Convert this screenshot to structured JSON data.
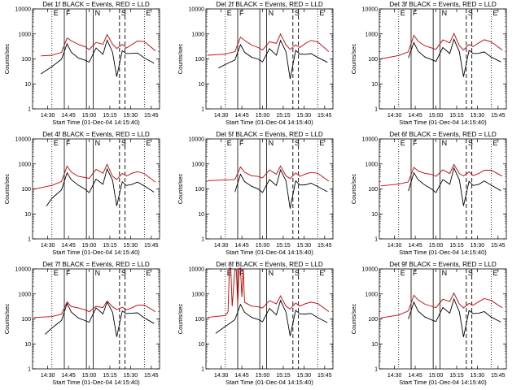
{
  "figure": {
    "ylabel": "Counts/sec",
    "xlabel": "Start Time (01-Dec-04 14:15:40)",
    "x_ticks": [
      "14:30",
      "14:45",
      "15:00",
      "15:15",
      "15:30",
      "15:45"
    ],
    "y_ticks": [
      "1",
      "10",
      "100",
      "1000",
      "10000"
    ],
    "segment_markers": [
      "E",
      "F",
      "N",
      "S",
      "E"
    ],
    "colors": {
      "events": "#000000",
      "lld": "#cc0000",
      "axis": "#000000"
    }
  },
  "chart_data": [
    {
      "type": "line",
      "title": "Det 1f BLACK = Events, RED = LLD",
      "xlabel": "Start Time (01-Dec-04 14:15:40)",
      "ylabel": "Counts/sec",
      "x_range_minutes": [
        14.3,
        14.9
      ],
      "ylim": [
        1,
        10000
      ],
      "log_y": true,
      "series": [
        {
          "name": "Events",
          "color": "#000000",
          "x": [
            "14:25",
            "14:33",
            "14:40",
            "14:44",
            "14:47",
            "14:52",
            "14:57",
            "15:00",
            "15:05",
            "15:10",
            "15:13",
            "15:17",
            "15:20",
            "15:24",
            "15:27",
            "15:31",
            "15:35",
            "15:40",
            "15:47"
          ],
          "values": [
            25,
            45,
            90,
            400,
            200,
            120,
            90,
            70,
            250,
            150,
            600,
            200,
            20,
            200,
            150,
            160,
            180,
            120,
            70
          ]
        },
        {
          "name": "LLD",
          "color": "#cc0000",
          "x": [
            "14:25",
            "14:33",
            "14:40",
            "14:44",
            "14:47",
            "14:52",
            "14:57",
            "15:00",
            "15:05",
            "15:10",
            "15:13",
            "15:17",
            "15:20",
            "15:24",
            "15:27",
            "15:31",
            "15:35",
            "15:40",
            "15:48"
          ],
          "values": [
            130,
            150,
            200,
            700,
            500,
            350,
            300,
            250,
            500,
            400,
            900,
            350,
            250,
            400,
            300,
            400,
            500,
            450,
            200
          ]
        }
      ]
    },
    {
      "type": "line",
      "title": "Det 2f BLACK = Events, RED = LLD",
      "xlabel": "Start Time (01-Dec-04 14:15:40)",
      "ylabel": "Counts/sec",
      "ylim": [
        1,
        10000
      ],
      "log_y": true,
      "series": [
        {
          "name": "Events",
          "color": "#000000",
          "x": [
            "14:28",
            "14:33",
            "14:40",
            "14:44",
            "14:47",
            "14:52",
            "14:57",
            "15:00",
            "15:05",
            "15:10",
            "15:13",
            "15:17",
            "15:20",
            "15:24",
            "15:27",
            "15:31",
            "15:35",
            "15:40",
            "15:47"
          ],
          "values": [
            40,
            55,
            90,
            400,
            200,
            120,
            90,
            70,
            250,
            150,
            600,
            200,
            15,
            200,
            150,
            160,
            180,
            120,
            70
          ]
        },
        {
          "name": "LLD",
          "color": "#cc0000",
          "x": [
            "14:20",
            "14:33",
            "14:40",
            "14:44",
            "14:47",
            "14:52",
            "14:57",
            "15:00",
            "15:05",
            "15:10",
            "15:13",
            "15:17",
            "15:20",
            "15:24",
            "15:27",
            "15:31",
            "15:35",
            "15:40",
            "15:48"
          ],
          "values": [
            150,
            170,
            200,
            700,
            500,
            350,
            300,
            250,
            500,
            400,
            900,
            350,
            250,
            400,
            300,
            400,
            500,
            450,
            200
          ]
        }
      ]
    },
    {
      "type": "line",
      "title": "Det 3f BLACK = Events, RED = LLD",
      "xlabel": "Start Time (01-Dec-04 14:15:40)",
      "ylabel": "Counts/sec",
      "ylim": [
        1,
        10000
      ],
      "log_y": true,
      "series": [
        {
          "name": "Events",
          "color": "#000000",
          "x": [
            "14:40",
            "14:44",
            "14:47",
            "14:52",
            "14:57",
            "15:00",
            "15:05",
            "15:10",
            "15:13",
            "15:17",
            "15:20",
            "15:24",
            "15:27",
            "15:31",
            "15:35",
            "15:40",
            "15:47"
          ],
          "values": [
            100,
            450,
            220,
            130,
            95,
            75,
            260,
            160,
            650,
            210,
            20,
            210,
            150,
            160,
            200,
            130,
            80
          ]
        },
        {
          "name": "LLD",
          "color": "#cc0000",
          "x": [
            "14:20",
            "14:33",
            "14:40",
            "14:44",
            "14:47",
            "14:52",
            "14:57",
            "15:00",
            "15:05",
            "15:10",
            "15:13",
            "15:17",
            "15:20",
            "15:24",
            "15:27",
            "15:31",
            "15:35",
            "15:40",
            "15:48"
          ],
          "values": [
            110,
            140,
            180,
            800,
            500,
            350,
            300,
            250,
            550,
            400,
            1000,
            350,
            250,
            400,
            300,
            400,
            550,
            500,
            250
          ]
        }
      ]
    },
    {
      "type": "line",
      "title": "Det 4f BLACK = Events, RED = LLD",
      "xlabel": "Start Time (01-Dec-04 14:15:40)",
      "ylabel": "Counts/sec",
      "ylim": [
        1,
        10000
      ],
      "log_y": true,
      "series": [
        {
          "name": "Events",
          "color": "#000000",
          "x": [
            "14:29",
            "14:33",
            "14:40",
            "14:44",
            "14:47",
            "14:52",
            "14:57",
            "15:00",
            "15:05",
            "15:10",
            "15:13",
            "15:17",
            "15:20",
            "15:24",
            "15:27",
            "15:31",
            "15:35",
            "15:40",
            "15:47"
          ],
          "values": [
            20,
            45,
            100,
            450,
            220,
            130,
            95,
            75,
            270,
            160,
            600,
            200,
            20,
            200,
            150,
            160,
            180,
            120,
            70
          ]
        },
        {
          "name": "LLD",
          "color": "#cc0000",
          "x": [
            "14:20",
            "14:33",
            "14:40",
            "14:44",
            "14:47",
            "14:52",
            "14:57",
            "15:00",
            "15:05",
            "15:10",
            "15:13",
            "15:17",
            "15:20",
            "15:24",
            "15:27",
            "15:31",
            "15:35",
            "15:40",
            "15:48"
          ],
          "values": [
            100,
            130,
            180,
            800,
            500,
            350,
            300,
            250,
            550,
            400,
            1000,
            350,
            250,
            400,
            300,
            400,
            500,
            450,
            200
          ]
        }
      ]
    },
    {
      "type": "line",
      "title": "Det 5f BLACK = Events, RED = LLD",
      "xlabel": "Start Time (01-Dec-04 14:15:40)",
      "ylabel": "Counts/sec",
      "ylim": [
        1,
        10000
      ],
      "log_y": true,
      "series": [
        {
          "name": "Events",
          "color": "#000000",
          "x": [
            "14:40",
            "14:44",
            "14:47",
            "14:52",
            "14:57",
            "15:00",
            "15:05",
            "15:10",
            "15:13",
            "15:17",
            "15:20",
            "15:24",
            "15:27",
            "15:31",
            "15:35",
            "15:40",
            "15:47"
          ],
          "values": [
            80,
            420,
            200,
            120,
            90,
            70,
            250,
            150,
            600,
            200,
            15,
            200,
            150,
            160,
            180,
            120,
            70
          ]
        },
        {
          "name": "LLD",
          "color": "#cc0000",
          "x": [
            "14:20",
            "14:33",
            "14:40",
            "14:44",
            "14:47",
            "14:52",
            "14:57",
            "15:00",
            "15:05",
            "15:10",
            "15:13",
            "15:17",
            "15:20",
            "15:24",
            "15:27",
            "15:31",
            "15:35",
            "15:40",
            "15:48"
          ],
          "values": [
            200,
            210,
            230,
            800,
            500,
            350,
            300,
            250,
            550,
            400,
            900,
            350,
            250,
            400,
            300,
            400,
            500,
            450,
            200
          ]
        }
      ]
    },
    {
      "type": "line",
      "title": "Det 6f BLACK = Events, RED = LLD",
      "xlabel": "Start Time (01-Dec-04 14:15:40)",
      "ylabel": "Counts/sec",
      "ylim": [
        1,
        10000
      ],
      "log_y": true,
      "series": [
        {
          "name": "Events",
          "color": "#000000",
          "x": [
            "14:40",
            "14:44",
            "14:47",
            "14:52",
            "14:57",
            "15:00",
            "15:05",
            "15:10",
            "15:13",
            "15:17",
            "15:20",
            "15:24",
            "15:27",
            "15:31",
            "15:35",
            "15:40",
            "15:47"
          ],
          "values": [
            90,
            450,
            220,
            130,
            95,
            75,
            260,
            160,
            650,
            210,
            20,
            210,
            150,
            160,
            200,
            130,
            80
          ]
        },
        {
          "name": "LLD",
          "color": "#cc0000",
          "x": [
            "14:20",
            "14:33",
            "14:40",
            "14:44",
            "14:47",
            "14:52",
            "14:57",
            "15:00",
            "15:05",
            "15:10",
            "15:13",
            "15:17",
            "15:20",
            "15:24",
            "15:27",
            "15:31",
            "15:35",
            "15:40",
            "15:48"
          ],
          "values": [
            120,
            150,
            200,
            800,
            550,
            400,
            350,
            300,
            600,
            450,
            1000,
            400,
            300,
            450,
            350,
            450,
            600,
            550,
            300
          ]
        }
      ]
    },
    {
      "type": "line",
      "title": "Det 7f BLACK = Events, RED = LLD",
      "xlabel": "Start Time (01-Dec-04 14:15:40)",
      "ylabel": "Counts/sec",
      "ylim": [
        1,
        10000
      ],
      "log_y": true,
      "series": [
        {
          "name": "Events",
          "color": "#000000",
          "x": [
            "14:28",
            "14:33",
            "14:40",
            "14:44",
            "14:47",
            "14:52",
            "14:57",
            "15:00",
            "15:05",
            "15:10",
            "15:13",
            "15:17",
            "15:20",
            "15:24",
            "15:27",
            "15:31",
            "15:35",
            "15:40",
            "15:47"
          ],
          "values": [
            25,
            40,
            80,
            400,
            200,
            120,
            90,
            70,
            250,
            150,
            500,
            200,
            20,
            200,
            150,
            160,
            180,
            120,
            70
          ]
        },
        {
          "name": "LLD",
          "color": "#cc0000",
          "x": [
            "14:20",
            "14:33",
            "14:40",
            "14:44",
            "14:47",
            "14:52",
            "14:57",
            "15:00",
            "15:05",
            "15:10",
            "15:13",
            "15:17",
            "15:20",
            "15:24",
            "15:27",
            "15:31",
            "15:35",
            "15:40",
            "15:48"
          ],
          "values": [
            110,
            130,
            170,
            500,
            300,
            250,
            220,
            200,
            350,
            300,
            500,
            280,
            220,
            300,
            250,
            300,
            350,
            330,
            180
          ]
        }
      ]
    },
    {
      "type": "line",
      "title": "Det 8f BLACK = Events, RED = LLD",
      "xlabel": "Start Time (01-Dec-04 14:15:40)",
      "ylabel": "Counts/sec",
      "ylim": [
        1,
        10000
      ],
      "log_y": true,
      "series": [
        {
          "name": "Events",
          "color": "#000000",
          "x": [
            "14:26",
            "14:33",
            "14:40",
            "14:44",
            "14:47",
            "14:52",
            "14:57",
            "15:00",
            "15:05",
            "15:10",
            "15:13",
            "15:17",
            "15:20",
            "15:24",
            "15:27",
            "15:31",
            "15:35",
            "15:40",
            "15:47"
          ],
          "values": [
            25,
            45,
            90,
            400,
            200,
            120,
            90,
            70,
            250,
            150,
            600,
            200,
            20,
            200,
            150,
            160,
            180,
            120,
            70
          ]
        },
        {
          "name": "LLD",
          "color": "#cc0000",
          "x": [
            "14:20",
            "14:33",
            "14:35",
            "14:36",
            "14:37",
            "14:38",
            "14:40",
            "14:41",
            "14:42",
            "14:43",
            "14:44",
            "14:45",
            "14:46",
            "14:47",
            "14:52",
            "14:57",
            "15:00",
            "15:05",
            "15:10",
            "15:13",
            "15:17",
            "15:20",
            "15:24",
            "15:27",
            "15:31",
            "15:35",
            "15:40",
            "15:48"
          ],
          "values": [
            120,
            150,
            200,
            10000,
            10000,
            300,
            10000,
            10000,
            400,
            10000,
            10000,
            700,
            10000,
            500,
            350,
            300,
            250,
            500,
            400,
            900,
            350,
            250,
            400,
            300,
            400,
            500,
            450,
            200
          ]
        }
      ]
    },
    {
      "type": "line",
      "title": "Det 9f BLACK = Events, RED = LLD",
      "xlabel": "Start Time (01-Dec-04 14:15:40)",
      "ylabel": "Counts/sec",
      "ylim": [
        1,
        10000
      ],
      "log_y": true,
      "series": [
        {
          "name": "Events",
          "color": "#000000",
          "x": [
            "14:40",
            "14:44",
            "14:47",
            "14:52",
            "14:57",
            "15:00",
            "15:05",
            "15:10",
            "15:13",
            "15:17",
            "15:20",
            "15:24",
            "15:27",
            "15:31",
            "15:35",
            "15:40",
            "15:47"
          ],
          "values": [
            90,
            450,
            220,
            130,
            95,
            75,
            260,
            160,
            650,
            210,
            20,
            210,
            150,
            160,
            200,
            130,
            80
          ]
        },
        {
          "name": "LLD",
          "color": "#cc0000",
          "x": [
            "14:20",
            "14:33",
            "14:40",
            "14:44",
            "14:47",
            "14:52",
            "14:57",
            "15:00",
            "15:05",
            "15:10",
            "15:13",
            "15:17",
            "15:20",
            "15:24",
            "15:27",
            "15:31",
            "15:35",
            "15:40",
            "15:48"
          ],
          "values": [
            120,
            150,
            200,
            800,
            550,
            400,
            350,
            300,
            600,
            450,
            1000,
            400,
            300,
            450,
            350,
            450,
            600,
            550,
            300
          ]
        }
      ]
    }
  ],
  "interval_markers": {
    "dotted": [
      "14:33",
      "15:40"
    ],
    "solid": [
      "14:42",
      "14:58",
      "15:03"
    ],
    "dashed": [
      "15:22",
      "15:26"
    ],
    "labels_at": [
      "14:33",
      "14:42",
      "15:03",
      "15:22",
      "15:40"
    ]
  }
}
